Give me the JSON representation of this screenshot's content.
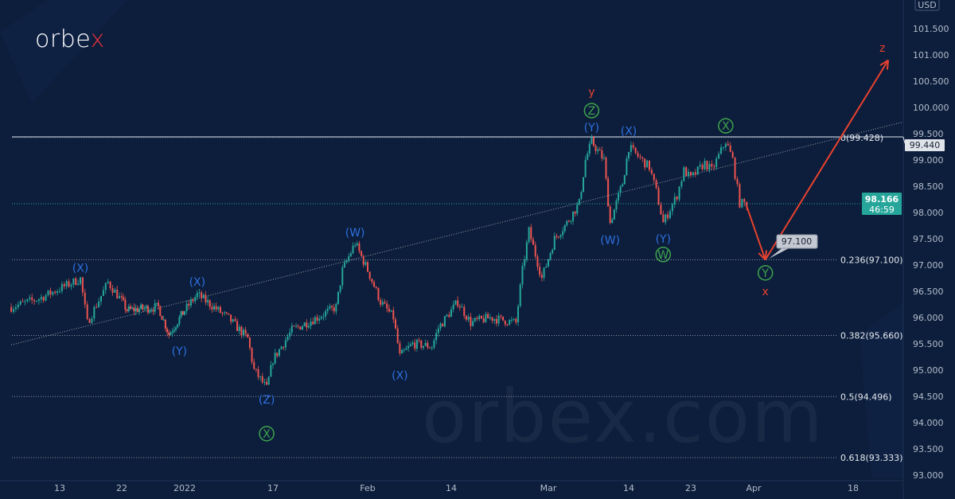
{
  "brand": {
    "logo_main": "orbe",
    "logo_accent": "x",
    "watermark": "orbex.com"
  },
  "colors": {
    "background": "#0c1e3b",
    "up": "#26a69a",
    "down": "#ef5350",
    "wave_blue": "#2f6fe0",
    "wave_green": "#3fa34d",
    "wave_red": "#e8412f",
    "price_badge": "#26a69a"
  },
  "currency": "USD",
  "current_price": {
    "value": "98.166",
    "countdown": "46:59"
  },
  "level_badge": "99.440",
  "callout": "97.100",
  "chart_data": {
    "type": "candlestick",
    "title": "",
    "ylim": [
      93.0,
      101.75
    ],
    "y_ticks": [
      "93.000",
      "93.500",
      "94.000",
      "94.500",
      "95.000",
      "95.500",
      "96.000",
      "96.500",
      "97.000",
      "97.500",
      "98.000",
      "98.500",
      "99.000",
      "99.500",
      "100.000",
      "100.500",
      "101.000",
      "101.500"
    ],
    "x_ticks": [
      {
        "label": "13",
        "date": "2021-12-13"
      },
      {
        "label": "22",
        "date": "2021-12-22"
      },
      {
        "label": "2022",
        "date": "2022-01-03"
      },
      {
        "label": "17",
        "date": "2022-01-17"
      },
      {
        "label": "Feb",
        "date": "2022-02-01"
      },
      {
        "label": "14",
        "date": "2022-02-14"
      },
      {
        "label": "Mar",
        "date": "2022-03-01"
      },
      {
        "label": "14",
        "date": "2022-03-14"
      },
      {
        "label": "23",
        "date": "2022-03-23"
      },
      {
        "label": "Apr",
        "date": "2022-04-01"
      },
      {
        "label": "18",
        "date": "2022-04-18"
      }
    ],
    "price_path": [
      [
        "2021-12-06",
        96.2
      ],
      [
        "2021-12-10",
        96.36
      ],
      [
        "2021-12-16",
        96.74
      ],
      [
        "2021-12-17",
        95.9
      ],
      [
        "2021-12-20",
        96.67
      ],
      [
        "2021-12-23",
        96.14
      ],
      [
        "2021-12-29",
        96.2
      ],
      [
        "2021-12-31",
        95.68
      ],
      [
        "2022-01-05",
        96.44
      ],
      [
        "2022-01-10",
        95.98
      ],
      [
        "2022-01-13",
        95.6
      ],
      [
        "2022-01-14",
        95.0
      ],
      [
        "2022-01-16",
        94.65
      ],
      [
        "2022-01-17",
        95.2
      ],
      [
        "2022-01-20",
        95.76
      ],
      [
        "2022-01-24",
        96.0
      ],
      [
        "2022-01-27",
        96.2
      ],
      [
        "2022-01-28",
        96.9
      ],
      [
        "2022-01-30",
        97.42
      ],
      [
        "2022-02-01",
        96.9
      ],
      [
        "2022-02-03",
        96.3
      ],
      [
        "2022-02-05",
        96.0
      ],
      [
        "2022-02-06",
        95.26
      ],
      [
        "2022-02-08",
        95.5
      ],
      [
        "2022-02-11",
        95.45
      ],
      [
        "2022-02-12",
        95.8
      ],
      [
        "2022-02-15",
        96.3
      ],
      [
        "2022-02-17",
        95.9
      ],
      [
        "2022-02-20",
        96.0
      ],
      [
        "2022-02-24",
        95.9
      ],
      [
        "2022-02-25",
        96.9
      ],
      [
        "2022-02-26",
        97.65
      ],
      [
        "2022-02-28",
        96.75
      ],
      [
        "2022-03-02",
        97.5
      ],
      [
        "2022-03-04",
        97.8
      ],
      [
        "2022-03-06",
        98.18
      ],
      [
        "2022-03-07",
        99.0
      ],
      [
        "2022-03-08",
        99.35
      ],
      [
        "2022-03-10",
        99.0
      ],
      [
        "2022-03-11",
        97.8
      ],
      [
        "2022-03-13",
        98.56
      ],
      [
        "2022-03-14",
        99.24
      ],
      [
        "2022-03-17",
        98.86
      ],
      [
        "2022-03-18",
        98.4
      ],
      [
        "2022-03-19",
        97.8
      ],
      [
        "2022-03-21",
        98.33
      ],
      [
        "2022-03-22",
        98.8
      ],
      [
        "2022-03-23",
        98.65
      ],
      [
        "2022-03-25",
        98.94
      ],
      [
        "2022-03-26",
        98.8
      ],
      [
        "2022-03-28",
        99.36
      ],
      [
        "2022-03-29",
        99.0
      ],
      [
        "2022-03-30",
        98.18
      ],
      [
        "2022-03-31",
        98.166
      ]
    ],
    "horizontal_level": 99.44,
    "fib_levels": [
      {
        "label": "0(99.428)",
        "value": 99.428
      },
      {
        "label": "0.236(97.100)",
        "value": 97.1
      },
      {
        "label": "0.382(95.660)",
        "value": 95.66
      },
      {
        "label": "0.5(94.496)",
        "value": 94.496
      },
      {
        "label": "0.618(93.333)",
        "value": 93.333
      }
    ],
    "trendline": [
      [
        "2021-12-06",
        95.48
      ],
      [
        "2022-04-16",
        99.43
      ]
    ],
    "projection": [
      [
        "2022-03-31",
        98.12
      ],
      [
        "2022-04-03",
        97.1
      ],
      [
        "2022-04-24",
        100.9
      ]
    ],
    "wave_labels": [
      {
        "text": "(X)",
        "date": "2021-12-16",
        "price": 96.95,
        "color": "blue",
        "circle": false
      },
      {
        "text": "(X)",
        "date": "2022-01-05",
        "price": 96.68,
        "color": "blue",
        "circle": false
      },
      {
        "text": "(Y)",
        "date": "2022-01-02",
        "price": 95.36,
        "color": "blue",
        "circle": false
      },
      {
        "text": "(Z)",
        "date": "2022-01-16",
        "price": 94.44,
        "color": "blue",
        "circle": false
      },
      {
        "text": "X",
        "date": "2022-01-16",
        "price": 93.79,
        "color": "green",
        "circle": true
      },
      {
        "text": "(W)",
        "date": "2022-01-30",
        "price": 97.62,
        "color": "blue",
        "circle": false
      },
      {
        "text": "(X)",
        "date": "2022-02-06",
        "price": 94.9,
        "color": "blue",
        "circle": false
      },
      {
        "text": "y",
        "date": "2022-03-08",
        "price": 100.3,
        "color": "red",
        "circle": false
      },
      {
        "text": "Z",
        "date": "2022-03-08",
        "price": 99.94,
        "color": "green",
        "circle": true
      },
      {
        "text": "(Y)",
        "date": "2022-03-08",
        "price": 99.62,
        "color": "blue",
        "circle": false
      },
      {
        "text": "(X)",
        "date": "2022-03-14",
        "price": 99.55,
        "color": "blue",
        "circle": false
      },
      {
        "text": "X",
        "date": "2022-03-28",
        "price": 99.65,
        "color": "green",
        "circle": true
      },
      {
        "text": "(W)",
        "date": "2022-03-11",
        "price": 97.48,
        "color": "blue",
        "circle": false
      },
      {
        "text": "(Y)",
        "date": "2022-03-19",
        "price": 97.5,
        "color": "blue",
        "circle": false
      },
      {
        "text": "W",
        "date": "2022-03-19",
        "price": 97.2,
        "color": "green",
        "circle": true
      },
      {
        "text": "Y",
        "date": "2022-04-03",
        "price": 96.85,
        "color": "green",
        "circle": true
      },
      {
        "text": "x",
        "date": "2022-04-03",
        "price": 96.5,
        "color": "red",
        "circle": false
      },
      {
        "text": "z",
        "date": "2022-04-23",
        "price": 101.14,
        "color": "red",
        "circle": false
      }
    ]
  }
}
